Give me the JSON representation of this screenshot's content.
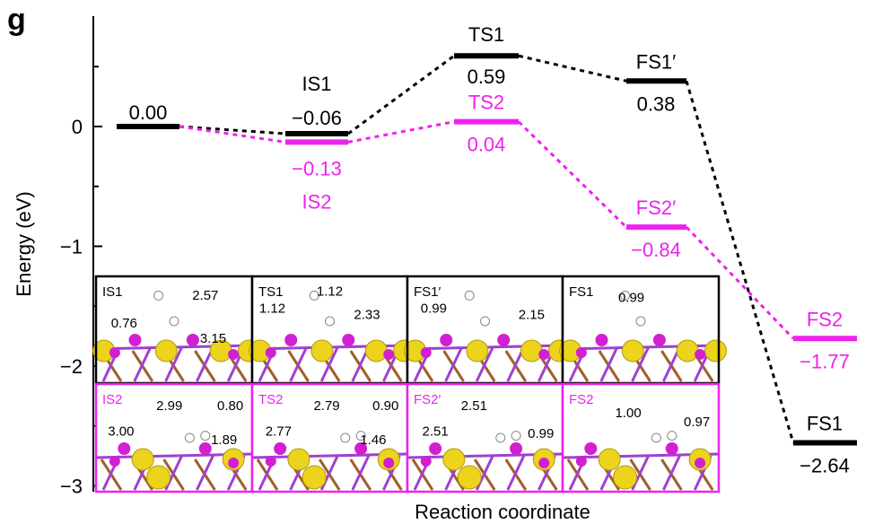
{
  "panel_letter": "g",
  "colors": {
    "black": "#000000",
    "magenta": "#ee22ee",
    "yellow": "#ecd31c",
    "atom_mag": "#d21fd2",
    "brown": "#a0602a",
    "purple": "#a040d0"
  },
  "chart_data": {
    "type": "energy-profile",
    "title": "",
    "xlabel": "Reaction coordinate",
    "ylabel": "Energy (eV)",
    "ylim": [
      -3.05,
      0.95
    ],
    "yticks": [
      {
        "value": 0,
        "label": "0"
      },
      {
        "value": -1,
        "label": "−1"
      },
      {
        "value": -2,
        "label": "−2"
      },
      {
        "value": -3,
        "label": "−3"
      }
    ],
    "series": [
      {
        "name": "path1",
        "color": "#000000",
        "points": [
          {
            "step": 0,
            "energy": 0.0,
            "value_label": "0.00",
            "state_label": ""
          },
          {
            "step": 1,
            "energy": -0.06,
            "value_label": "−0.06",
            "state_label": "IS1"
          },
          {
            "step": 2,
            "energy": 0.59,
            "value_label": "0.59",
            "state_label": "TS1"
          },
          {
            "step": 3,
            "energy": 0.38,
            "value_label": "0.38",
            "state_label": "FS1′"
          },
          {
            "step": 4,
            "energy": -2.64,
            "value_label": "−2.64",
            "state_label": "FS1"
          }
        ]
      },
      {
        "name": "path2",
        "color": "#ee22ee",
        "points": [
          {
            "step": 0,
            "energy": 0.0,
            "value_label": "",
            "state_label": ""
          },
          {
            "step": 1,
            "energy": -0.13,
            "value_label": "−0.13",
            "state_label": "IS2"
          },
          {
            "step": 2,
            "energy": 0.04,
            "value_label": "0.04",
            "state_label": "TS2"
          },
          {
            "step": 3,
            "energy": -0.84,
            "value_label": "−0.84",
            "state_label": "FS2′"
          },
          {
            "step": 4,
            "energy": -1.77,
            "value_label": "−1.77",
            "state_label": "FS2"
          }
        ]
      }
    ],
    "insets": {
      "top_row": [
        {
          "label": "IS1",
          "values": [
            "2.57",
            "0.76",
            "3.15"
          ]
        },
        {
          "label": "TS1",
          "values": [
            "1.12",
            "1.12",
            "2.33"
          ]
        },
        {
          "label": "FS1′",
          "values": [
            "0.99",
            "2.15"
          ]
        },
        {
          "label": "FS1",
          "values": [
            "0.99"
          ]
        }
      ],
      "bottom_row": [
        {
          "label": "IS2",
          "values": [
            "2.99",
            "0.80",
            "3.00",
            "1.89"
          ]
        },
        {
          "label": "TS2",
          "values": [
            "2.79",
            "0.90",
            "2.77",
            "1.46"
          ]
        },
        {
          "label": "FS2′",
          "values": [
            "2.51",
            "2.51",
            "0.99"
          ]
        },
        {
          "label": "FS2",
          "values": [
            "1.00",
            "0.97"
          ]
        }
      ]
    }
  }
}
